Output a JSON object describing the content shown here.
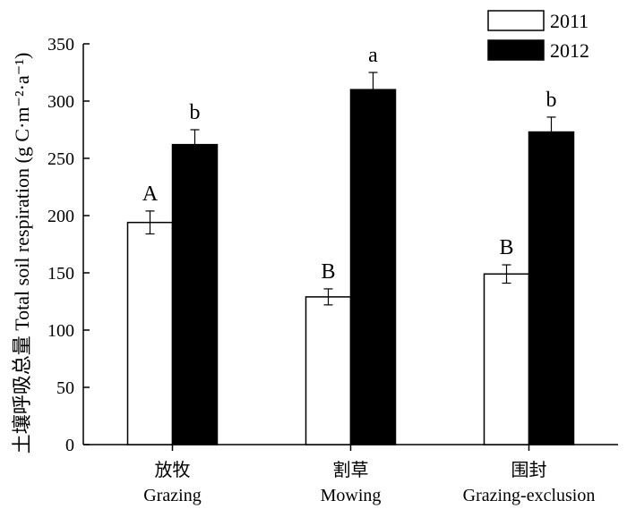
{
  "chart_data": {
    "type": "bar",
    "ylabel": "土壤呼吸总量 Total soil respiration (g C·m⁻²·a⁻¹)",
    "ylim": [
      0,
      350
    ],
    "yticks": [
      0,
      50,
      100,
      150,
      200,
      250,
      300,
      350
    ],
    "grid": false,
    "legend_position": "top-right",
    "categories": [
      {
        "cn": "放牧",
        "en": "Grazing"
      },
      {
        "cn": "割草",
        "en": "Mowing"
      },
      {
        "cn": "围封",
        "en": "Grazing-exclusion"
      }
    ],
    "series": [
      {
        "name": "2011",
        "color": "#ffffff",
        "values": [
          194,
          129,
          149
        ],
        "errors": [
          10,
          7,
          8
        ],
        "letters": [
          "A",
          "B",
          "B"
        ]
      },
      {
        "name": "2012",
        "color": "#000000",
        "values": [
          262,
          310,
          273
        ],
        "errors": [
          13,
          15,
          13
        ],
        "letters": [
          "b",
          "a",
          "b"
        ]
      }
    ]
  }
}
